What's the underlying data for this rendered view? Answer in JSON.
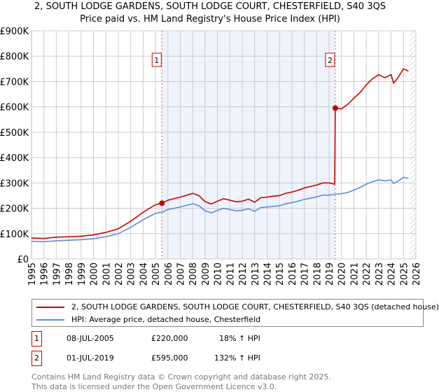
{
  "title": "2, SOUTH LODGE GARDENS, SOUTH LODGE COURT, CHESTERFIELD, S40 3QS",
  "subtitle": "Price paid vs. HM Land Registry's House Price Index (HPI)",
  "colors": {
    "property": "#cc0000",
    "hpi": "#5b8ed6",
    "shade": "#eef3fc"
  },
  "chart_data": {
    "type": "line",
    "ylim": [
      0,
      900000
    ],
    "xlim": [
      1995,
      2026
    ],
    "yticks": [
      "£0",
      "£100K",
      "£200K",
      "£300K",
      "£400K",
      "£500K",
      "£600K",
      "£700K",
      "£800K",
      "£900K"
    ],
    "xticks": [
      "1995",
      "1996",
      "1997",
      "1998",
      "1999",
      "2000",
      "2001",
      "2002",
      "2003",
      "2004",
      "2005",
      "2006",
      "2007",
      "2008",
      "2009",
      "2010",
      "2011",
      "2012",
      "2013",
      "2014",
      "2015",
      "2016",
      "2017",
      "2018",
      "2019",
      "2020",
      "2021",
      "2022",
      "2023",
      "2024",
      "2025",
      "2026"
    ],
    "shaded_range": [
      2005.52,
      2019.5
    ],
    "series": [
      {
        "name": "2, SOUTH LODGE GARDENS, SOUTH LODGE COURT, CHESTERFIELD, S40 3QS (detached house)",
        "x": [
          1995,
          1996,
          1997,
          1998,
          1999,
          2000,
          2001,
          2002,
          2003,
          2004,
          2005,
          2005.52,
          2006,
          2007,
          2008,
          2008.5,
          2009,
          2009.5,
          2010,
          2010.5,
          2011,
          2011.5,
          2012,
          2012.5,
          2013,
          2013.5,
          2014,
          2014.5,
          2015,
          2015.5,
          2016,
          2016.5,
          2017,
          2017.5,
          2018,
          2018.5,
          2019,
          2019.45,
          2019.5,
          2020,
          2020.5,
          2021,
          2021.5,
          2022,
          2022.5,
          2023,
          2023.5,
          2024,
          2024.2,
          2024.5,
          2025,
          2025.4
        ],
        "values": [
          83000,
          81000,
          86000,
          88000,
          90000,
          95000,
          105000,
          119000,
          149000,
          184000,
          214000,
          220000,
          232000,
          244000,
          259000,
          250000,
          226000,
          217000,
          228000,
          238000,
          232000,
          226000,
          228000,
          236000,
          224000,
          242000,
          244000,
          248000,
          250000,
          259000,
          264000,
          271000,
          280000,
          286000,
          292000,
          300000,
          300000,
          295000,
          595000,
          592000,
          610000,
          634000,
          657000,
          687000,
          711000,
          727000,
          715000,
          727000,
          694000,
          711000,
          750000,
          741000
        ]
      },
      {
        "name": "HPI: Average price, detached house, Chesterfield",
        "x": [
          1995,
          1996,
          1997,
          1998,
          1999,
          2000,
          2001,
          2002,
          2003,
          2004,
          2005,
          2005.52,
          2006,
          2007,
          2008,
          2008.5,
          2009,
          2009.5,
          2010,
          2010.5,
          2011,
          2011.5,
          2012,
          2012.5,
          2013,
          2013.5,
          2014,
          2014.5,
          2015,
          2015.5,
          2016,
          2016.5,
          2017,
          2017.5,
          2018,
          2018.5,
          2019,
          2019.5,
          2020,
          2020.5,
          2021,
          2021.5,
          2022,
          2022.5,
          2023,
          2023.5,
          2024,
          2024.2,
          2024.5,
          2025,
          2025.4
        ],
        "values": [
          70000,
          68000,
          72000,
          74000,
          76000,
          80000,
          88000,
          100000,
          125000,
          155000,
          180000,
          185000,
          195000,
          205000,
          218000,
          210000,
          190000,
          182000,
          192000,
          200000,
          195000,
          190000,
          192000,
          198000,
          188000,
          203000,
          205000,
          208000,
          210000,
          218000,
          222000,
          228000,
          235000,
          240000,
          245000,
          252000,
          252000,
          255000,
          258000,
          262000,
          272000,
          282000,
          295000,
          305000,
          312000,
          308000,
          312000,
          298000,
          305000,
          322000,
          318000
        ]
      }
    ],
    "annotations": [
      {
        "label": "1",
        "x": 2005.52,
        "y": 220000
      },
      {
        "label": "2",
        "x": 2019.5,
        "y": 595000
      }
    ]
  },
  "legend": {
    "property": "2, SOUTH LODGE GARDENS, SOUTH LODGE COURT, CHESTERFIELD, S40 3QS (detached house)",
    "hpi": "HPI: Average price, detached house, Chesterfield"
  },
  "sales": [
    {
      "num": "1",
      "date": "08-JUL-2005",
      "price": "£220,000",
      "hpi": "18% ↑ HPI"
    },
    {
      "num": "2",
      "date": "01-JUL-2019",
      "price": "£595,000",
      "hpi": "132% ↑ HPI"
    }
  ],
  "footer": {
    "line1": "Contains HM Land Registry data © Crown copyright and database right 2025.",
    "line2": "This data is licensed under the Open Government Licence v3.0."
  }
}
